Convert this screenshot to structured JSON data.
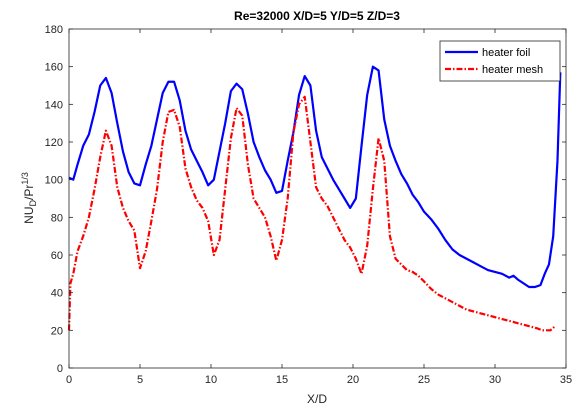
{
  "chart_data": {
    "type": "line",
    "title": "Re=32000  X/D=5  Y/D=5  Z/D=3",
    "xlabel": "X/D",
    "ylabel_main": "NU",
    "ylabel_sub": "D",
    "ylabel_mid": "/Pr",
    "ylabel_sup": "1/3",
    "xlim": [
      0,
      35
    ],
    "ylim": [
      0,
      180
    ],
    "xticks": [
      0,
      5,
      10,
      15,
      20,
      25,
      30,
      35
    ],
    "yticks": [
      0,
      20,
      40,
      60,
      80,
      100,
      120,
      140,
      160,
      180
    ],
    "grid": false,
    "legend_position": "top-right",
    "series": [
      {
        "name": "heater foil",
        "color": "#0000ff",
        "style": "solid",
        "x": [
          0,
          0.3,
          0.6,
          1,
          1.4,
          1.8,
          2.2,
          2.6,
          3,
          3.4,
          3.8,
          4.2,
          4.6,
          5,
          5.4,
          5.8,
          6.2,
          6.6,
          7,
          7.4,
          7.8,
          8.2,
          8.6,
          9,
          9.4,
          9.8,
          10.2,
          10.6,
          11,
          11.4,
          11.8,
          12.2,
          12.6,
          13,
          13.4,
          13.8,
          14.2,
          14.6,
          15,
          15.4,
          15.8,
          16.2,
          16.6,
          17,
          17.4,
          17.8,
          18.2,
          18.6,
          19,
          19.4,
          19.8,
          20.2,
          20.6,
          21,
          21.4,
          21.8,
          22.2,
          22.6,
          23,
          23.4,
          23.8,
          24.2,
          24.6,
          25,
          25.5,
          26,
          26.5,
          27,
          27.5,
          28,
          28.5,
          29,
          29.5,
          30,
          30.5,
          31,
          31.3,
          31.6,
          32,
          32.4,
          32.8,
          33.2,
          33.5,
          33.8,
          34.1,
          34.4,
          34.6
        ],
        "y": [
          101,
          100,
          108,
          118,
          124,
          136,
          150,
          154,
          146,
          130,
          115,
          104,
          98,
          97,
          108,
          118,
          132,
          146,
          152,
          152,
          142,
          126,
          116,
          110,
          104,
          97,
          100,
          115,
          130,
          147,
          151,
          148,
          135,
          120,
          112,
          105,
          100,
          93,
          94,
          110,
          125,
          145,
          155,
          150,
          126,
          112,
          106,
          100,
          95,
          90,
          85,
          90,
          118,
          145,
          160,
          158,
          132,
          118,
          110,
          103,
          98,
          92,
          88,
          83,
          79,
          74,
          68,
          63,
          60,
          58,
          56,
          54,
          52,
          51,
          50,
          48,
          49,
          47,
          45,
          43,
          43,
          44,
          50,
          55,
          70,
          110,
          157
        ]
      },
      {
        "name": "heater mesh",
        "color": "#ff0000",
        "style": "dashdot",
        "x": [
          0,
          0.1,
          0.3,
          0.6,
          1,
          1.4,
          1.8,
          2.2,
          2.6,
          3,
          3.4,
          3.8,
          4.2,
          4.6,
          5,
          5.4,
          5.8,
          6.2,
          6.6,
          7,
          7.4,
          7.8,
          8.2,
          8.6,
          9,
          9.4,
          9.8,
          10.2,
          10.6,
          11,
          11.4,
          11.8,
          12.2,
          12.6,
          13,
          13.4,
          13.8,
          14.2,
          14.6,
          15,
          15.4,
          15.8,
          16.2,
          16.6,
          17,
          17.4,
          17.8,
          18.2,
          18.6,
          19,
          19.4,
          19.8,
          20.2,
          20.6,
          21,
          21.4,
          21.8,
          22.2,
          22.6,
          23,
          23.4,
          23.8,
          24.2,
          24.6,
          25,
          25.5,
          26,
          26.5,
          27,
          27.5,
          28,
          28.5,
          29,
          29.5,
          30,
          30.5,
          31,
          31.5,
          32,
          32.5,
          33,
          33.3,
          33.6,
          33.9,
          34.2
        ],
        "y": [
          20,
          45,
          50,
          62,
          70,
          80,
          95,
          112,
          126,
          118,
          96,
          85,
          78,
          73,
          53,
          62,
          78,
          95,
          120,
          136,
          137,
          128,
          106,
          96,
          89,
          85,
          78,
          60,
          68,
          95,
          122,
          138,
          134,
          108,
          90,
          85,
          80,
          70,
          57,
          68,
          90,
          125,
          140,
          144,
          120,
          96,
          90,
          86,
          80,
          74,
          68,
          64,
          58,
          50,
          65,
          95,
          122,
          110,
          70,
          58,
          55,
          52,
          51,
          49,
          46,
          42,
          39,
          37,
          35,
          33,
          31,
          30,
          29,
          28,
          27,
          26,
          25,
          24,
          23,
          22,
          21,
          20,
          20,
          20,
          22
        ]
      }
    ]
  }
}
